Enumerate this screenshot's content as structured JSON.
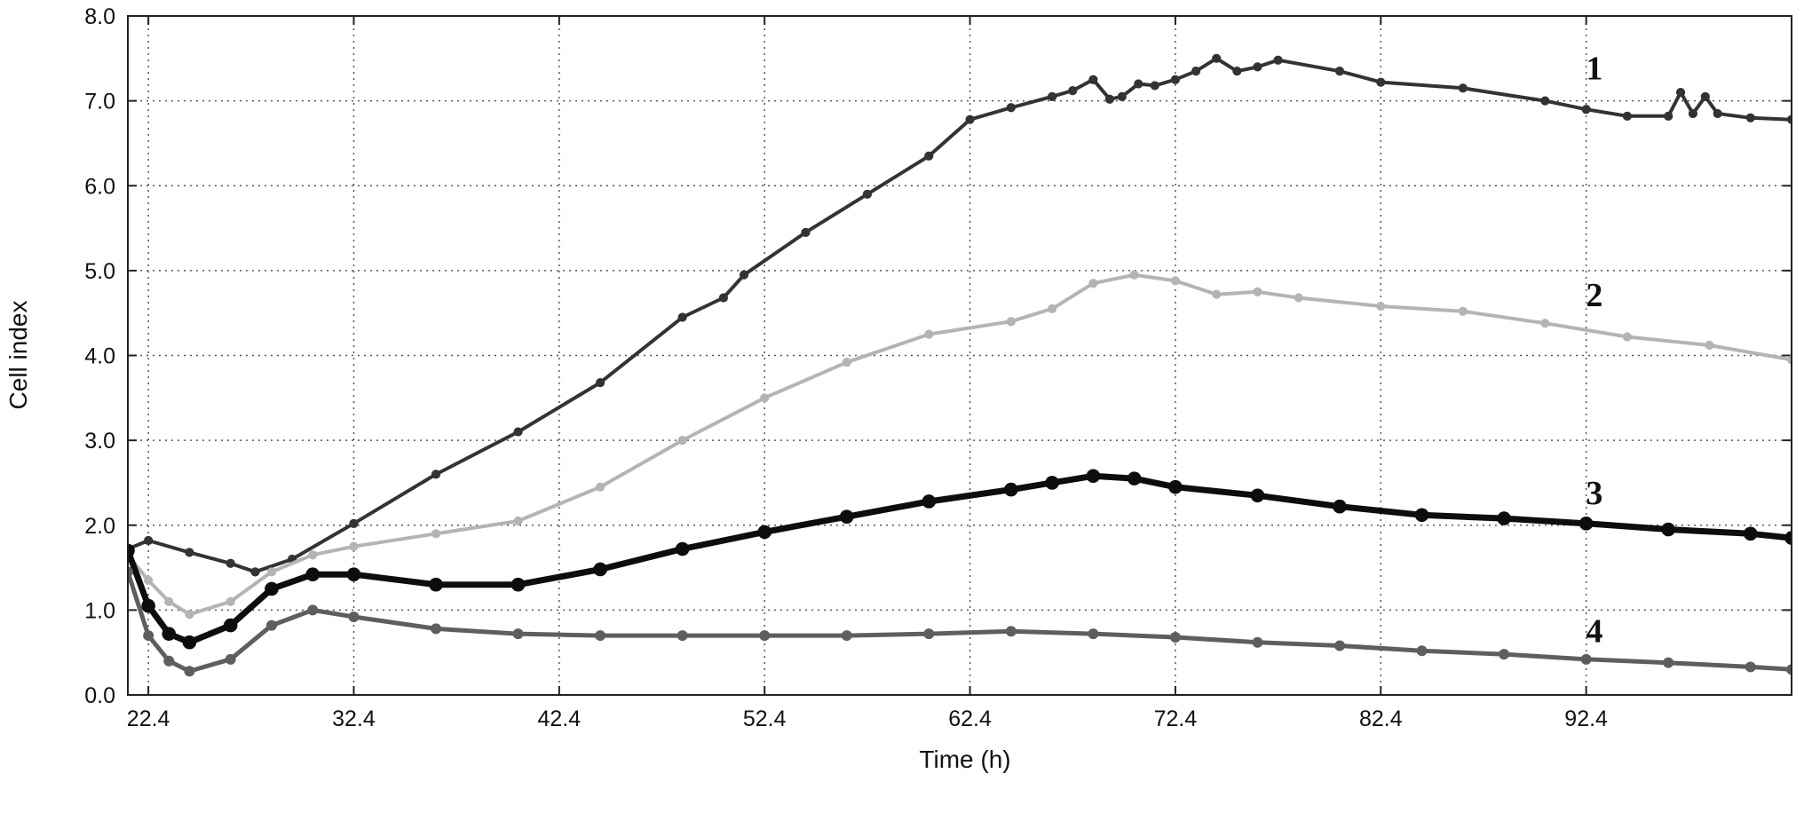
{
  "chart_data": {
    "type": "line",
    "title": "",
    "xlabel": "Time (h)",
    "ylabel": "Cell index",
    "xlim": [
      21.4,
      102.4
    ],
    "ylim": [
      0.0,
      8.0
    ],
    "xticks": [
      22.4,
      32.4,
      42.4,
      52.4,
      62.4,
      72.4,
      82.4,
      92.4
    ],
    "xtick_labels": [
      "22.4",
      "32.4",
      "42.4",
      "52.4",
      "62.4",
      "72.4",
      "82.4",
      "92.4"
    ],
    "yticks": [
      0,
      1,
      2,
      3,
      4,
      5,
      6,
      7,
      8
    ],
    "ytick_labels": [
      "0.0",
      "1.0",
      "2.0",
      "3.0",
      "4.0",
      "5.0",
      "6.0",
      "7.0",
      "8.0"
    ],
    "grid": true,
    "legend": "none",
    "series": [
      {
        "label": "1",
        "label_pos": [
          92.8,
          7.25
        ],
        "color": "#333333",
        "width": 4,
        "x": [
          21.4,
          22.4,
          24.4,
          26.4,
          27.6,
          29.4,
          32.4,
          36.4,
          40.4,
          44.4,
          48.4,
          50.4,
          51.4,
          54.4,
          57.4,
          60.4,
          62.4,
          64.4,
          66.4,
          67.4,
          68.4,
          69.2,
          69.8,
          70.6,
          71.4,
          72.4,
          73.4,
          74.4,
          75.4,
          76.4,
          77.4,
          80.4,
          82.4,
          86.4,
          90.4,
          92.4,
          94.4,
          96.4,
          97.0,
          97.6,
          98.2,
          98.8,
          100.4,
          102.4
        ],
        "y": [
          1.72,
          1.82,
          1.68,
          1.55,
          1.45,
          1.6,
          2.02,
          2.6,
          3.1,
          3.68,
          4.45,
          4.68,
          4.95,
          5.45,
          5.9,
          6.35,
          6.78,
          6.92,
          7.05,
          7.12,
          7.25,
          7.02,
          7.05,
          7.2,
          7.18,
          7.25,
          7.35,
          7.5,
          7.35,
          7.4,
          7.48,
          7.35,
          7.22,
          7.15,
          7.0,
          6.9,
          6.82,
          6.82,
          7.1,
          6.85,
          7.05,
          6.85,
          6.8,
          6.78
        ]
      },
      {
        "label": "2",
        "label_pos": [
          92.8,
          4.58
        ],
        "color": "#b4b4b4",
        "width": 4,
        "x": [
          21.4,
          22.4,
          23.4,
          24.4,
          26.4,
          28.4,
          30.4,
          32.4,
          36.4,
          40.4,
          44.4,
          48.4,
          52.4,
          56.4,
          60.4,
          64.4,
          66.4,
          68.4,
          70.4,
          72.4,
          74.4,
          76.4,
          78.4,
          82.4,
          86.4,
          90.4,
          94.4,
          98.4,
          102.4
        ],
        "y": [
          1.65,
          1.35,
          1.1,
          0.95,
          1.1,
          1.45,
          1.65,
          1.75,
          1.9,
          2.05,
          2.45,
          3.0,
          3.5,
          3.92,
          4.25,
          4.4,
          4.55,
          4.85,
          4.95,
          4.88,
          4.72,
          4.75,
          4.68,
          4.58,
          4.52,
          4.38,
          4.22,
          4.12,
          3.95
        ]
      },
      {
        "label": "3",
        "label_pos": [
          92.8,
          2.25
        ],
        "color": "#0d0d0d",
        "width": 7,
        "x": [
          21.4,
          22.4,
          23.4,
          24.4,
          26.4,
          28.4,
          30.4,
          32.4,
          36.4,
          40.4,
          44.4,
          48.4,
          52.4,
          56.4,
          60.4,
          64.4,
          66.4,
          68.4,
          70.4,
          72.4,
          76.4,
          80.4,
          84.4,
          88.4,
          92.4,
          96.4,
          100.4,
          102.4
        ],
        "y": [
          1.7,
          1.05,
          0.72,
          0.62,
          0.82,
          1.25,
          1.42,
          1.42,
          1.3,
          1.3,
          1.48,
          1.72,
          1.92,
          2.1,
          2.28,
          2.42,
          2.5,
          2.58,
          2.55,
          2.45,
          2.35,
          2.22,
          2.12,
          2.08,
          2.02,
          1.95,
          1.9,
          1.85
        ]
      },
      {
        "label": "4",
        "label_pos": [
          92.8,
          0.62
        ],
        "color": "#5e5e5e",
        "width": 5,
        "x": [
          21.4,
          22.4,
          23.4,
          24.4,
          26.4,
          28.4,
          30.4,
          32.4,
          36.4,
          40.4,
          44.4,
          48.4,
          52.4,
          56.4,
          60.4,
          64.4,
          68.4,
          72.4,
          76.4,
          80.4,
          84.4,
          88.4,
          92.4,
          96.4,
          100.4,
          102.4
        ],
        "y": [
          1.45,
          0.7,
          0.4,
          0.28,
          0.42,
          0.82,
          1.0,
          0.92,
          0.78,
          0.72,
          0.7,
          0.7,
          0.7,
          0.7,
          0.72,
          0.75,
          0.72,
          0.68,
          0.62,
          0.58,
          0.52,
          0.48,
          0.42,
          0.38,
          0.33,
          0.3
        ]
      }
    ]
  }
}
